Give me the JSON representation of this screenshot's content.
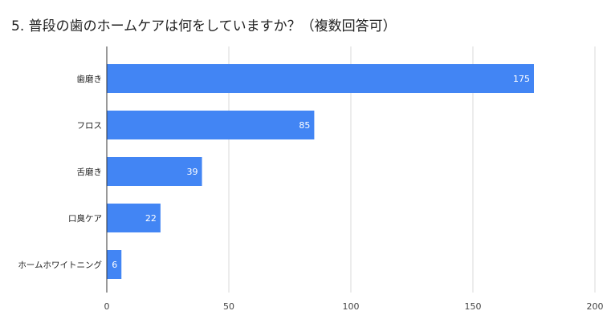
{
  "chart_data": {
    "type": "bar",
    "orientation": "horizontal",
    "title": "5. 普段の歯のホームケアは何をしていますか？（複数回答可）",
    "categories": [
      "歯磨き",
      "フロス",
      "舌磨き",
      "口臭ケア",
      "ホームホワイトニング"
    ],
    "values": [
      175,
      85,
      39,
      22,
      6
    ],
    "xlim": [
      0,
      200
    ],
    "xticks": [
      0,
      50,
      100,
      150,
      200
    ],
    "bar_color": "#4285f4",
    "grid": true,
    "data_labels": true,
    "legend": "none"
  }
}
